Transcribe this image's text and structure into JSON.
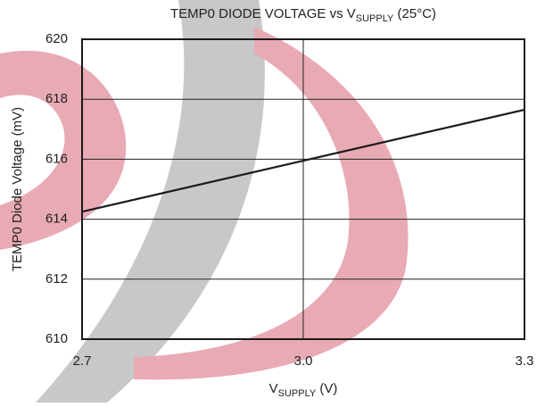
{
  "chart_data": {
    "type": "line",
    "title": [
      "TEMP0 DIODE VOLTAGE vs V",
      "SUPPLY",
      " (25°C)"
    ],
    "xlabel": [
      "V",
      "SUPPLY",
      " (V)"
    ],
    "ylabel": "TEMP0 Diode Voltage (mV)",
    "x": [
      2.7,
      3.0,
      3.3
    ],
    "series": [
      {
        "color": "#1a1a1a",
        "values": [
          614.25,
          615.95,
          617.65
        ]
      }
    ],
    "xlim": [
      2.7,
      3.3
    ],
    "xticks": [
      2.7,
      {
        "value": 3,
        "label": "3.0"
      },
      3.3
    ],
    "ylim": [
      610,
      620
    ],
    "yticks": [
      610,
      612,
      614,
      616,
      618,
      620
    ],
    "grid": true
  }
}
